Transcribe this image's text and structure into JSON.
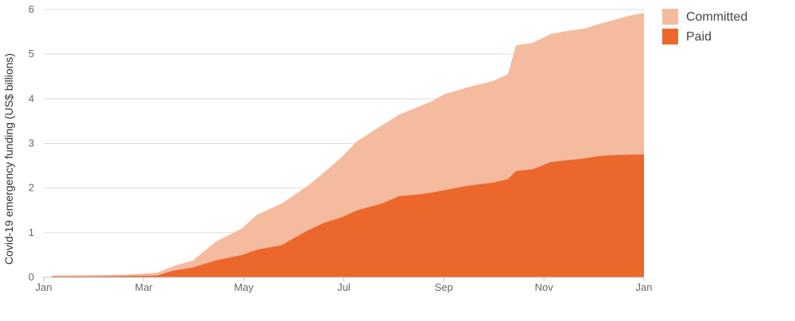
{
  "chart_data": {
    "type": "area",
    "ylabel": "Covid-19 emergency funding (US$ billions)",
    "xlabel": "",
    "ylim": [
      0,
      6
    ],
    "y_ticks": [
      0,
      1,
      2,
      3,
      4,
      5,
      6
    ],
    "x_ticks": [
      "Jan",
      "Mar",
      "May",
      "Jul",
      "Sep",
      "Nov",
      "Jan"
    ],
    "x_domain": [
      "2020-01-01",
      "2021-01-01"
    ],
    "grid": true,
    "legend_position": "top-right",
    "series": [
      {
        "name": "Committed",
        "color": "#f5bb9f",
        "points": [
          [
            "2020-01-06",
            0.04
          ],
          [
            "2020-02-01",
            0.05
          ],
          [
            "2020-02-20",
            0.06
          ],
          [
            "2020-03-10",
            0.1
          ],
          [
            "2020-03-20",
            0.25
          ],
          [
            "2020-04-01",
            0.38
          ],
          [
            "2020-04-15",
            0.8
          ],
          [
            "2020-05-01",
            1.1
          ],
          [
            "2020-05-10",
            1.4
          ],
          [
            "2020-05-25",
            1.65
          ],
          [
            "2020-06-10",
            2.05
          ],
          [
            "2020-06-20",
            2.35
          ],
          [
            "2020-07-01",
            2.7
          ],
          [
            "2020-07-10",
            3.05
          ],
          [
            "2020-07-25",
            3.4
          ],
          [
            "2020-08-05",
            3.65
          ],
          [
            "2020-08-15",
            3.8
          ],
          [
            "2020-08-25",
            3.95
          ],
          [
            "2020-09-01",
            4.1
          ],
          [
            "2020-09-15",
            4.25
          ],
          [
            "2020-10-01",
            4.4
          ],
          [
            "2020-10-10",
            4.55
          ],
          [
            "2020-10-15",
            5.2
          ],
          [
            "2020-10-25",
            5.25
          ],
          [
            "2020-11-05",
            5.45
          ],
          [
            "2020-11-15",
            5.52
          ],
          [
            "2020-11-25",
            5.57
          ],
          [
            "2020-12-05",
            5.68
          ],
          [
            "2020-12-15",
            5.78
          ],
          [
            "2020-12-25",
            5.88
          ],
          [
            "2021-01-01",
            5.92
          ]
        ]
      },
      {
        "name": "Paid",
        "color": "#eb672c",
        "points": [
          [
            "2020-01-06",
            0.02
          ],
          [
            "2020-02-01",
            0.02
          ],
          [
            "2020-02-20",
            0.03
          ],
          [
            "2020-03-10",
            0.04
          ],
          [
            "2020-03-20",
            0.15
          ],
          [
            "2020-04-01",
            0.22
          ],
          [
            "2020-04-15",
            0.38
          ],
          [
            "2020-05-01",
            0.5
          ],
          [
            "2020-05-10",
            0.62
          ],
          [
            "2020-05-25",
            0.72
          ],
          [
            "2020-06-10",
            1.05
          ],
          [
            "2020-06-20",
            1.22
          ],
          [
            "2020-07-01",
            1.35
          ],
          [
            "2020-07-10",
            1.5
          ],
          [
            "2020-07-25",
            1.65
          ],
          [
            "2020-08-05",
            1.82
          ],
          [
            "2020-08-15",
            1.85
          ],
          [
            "2020-08-25",
            1.9
          ],
          [
            "2020-09-01",
            1.95
          ],
          [
            "2020-09-15",
            2.05
          ],
          [
            "2020-10-01",
            2.12
          ],
          [
            "2020-10-10",
            2.2
          ],
          [
            "2020-10-15",
            2.38
          ],
          [
            "2020-10-25",
            2.42
          ],
          [
            "2020-11-05",
            2.58
          ],
          [
            "2020-11-15",
            2.62
          ],
          [
            "2020-11-25",
            2.66
          ],
          [
            "2020-12-05",
            2.72
          ],
          [
            "2020-12-15",
            2.74
          ],
          [
            "2020-12-25",
            2.75
          ],
          [
            "2021-01-01",
            2.75
          ]
        ]
      }
    ]
  }
}
